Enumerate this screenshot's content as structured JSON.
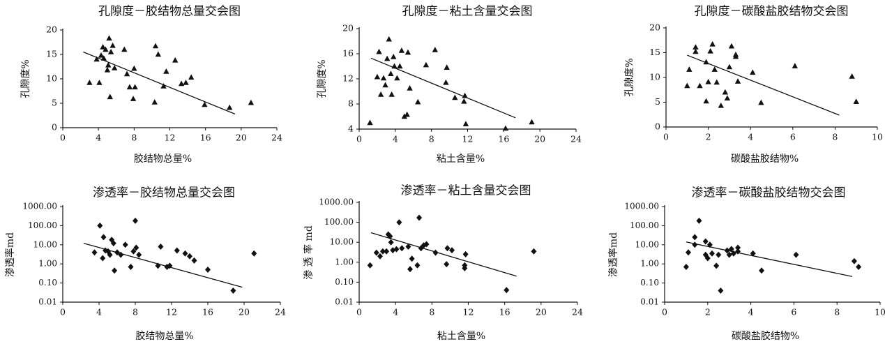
{
  "chart_data": [
    {
      "type": "scatter",
      "title": "孔隙度－胶结物总量交会图",
      "xlabel": "胶结物总量%",
      "ylabel": "孔隙度%",
      "xlim": [
        0,
        24
      ],
      "ylim": [
        0,
        20
      ],
      "x_ticks": [
        0,
        4,
        8,
        12,
        16,
        20,
        24
      ],
      "x_tick_labels": [
        "0",
        "4",
        "8",
        "12",
        "16",
        "20",
        "24"
      ],
      "y_ticks": [
        0,
        5,
        10,
        15,
        20
      ],
      "y_tick_labels": [
        "0",
        "5",
        "10",
        "15",
        "20"
      ],
      "y_scale": "linear",
      "marker": "triangle",
      "trendline": [
        [
          2.3,
          15.5
        ],
        [
          19.3,
          2.8
        ]
      ],
      "points": [
        [
          3.0,
          9.2
        ],
        [
          3.8,
          14.0
        ],
        [
          4.1,
          9.2
        ],
        [
          4.3,
          14.8
        ],
        [
          4.5,
          16.5
        ],
        [
          4.6,
          14.2
        ],
        [
          4.8,
          16.0
        ],
        [
          5.0,
          11.8
        ],
        [
          5.1,
          12.8
        ],
        [
          5.2,
          18.3
        ],
        [
          5.3,
          6.3
        ],
        [
          5.4,
          15.5
        ],
        [
          5.6,
          16.8
        ],
        [
          5.8,
          12.2
        ],
        [
          6.9,
          16.0
        ],
        [
          7.2,
          11.0
        ],
        [
          7.5,
          8.3
        ],
        [
          8.0,
          12.1
        ],
        [
          7.9,
          5.9
        ],
        [
          8.1,
          8.3
        ],
        [
          10.3,
          5.2
        ],
        [
          10.4,
          16.7
        ],
        [
          10.7,
          15.0
        ],
        [
          11.3,
          8.5
        ],
        [
          11.6,
          11.5
        ],
        [
          12.6,
          13.8
        ],
        [
          13.3,
          9.0
        ],
        [
          13.8,
          9.2
        ],
        [
          14.4,
          10.3
        ],
        [
          15.9,
          4.7
        ],
        [
          18.7,
          4.1
        ],
        [
          21.1,
          5.1
        ]
      ]
    },
    {
      "type": "scatter",
      "title": "孔隙度－粘土含量交会图",
      "xlabel": "粘土含量%",
      "ylabel": "孔隙度%",
      "xlim": [
        0,
        24
      ],
      "ylim": [
        4,
        20
      ],
      "x_ticks": [
        0,
        4,
        8,
        12,
        16,
        20,
        24
      ],
      "x_tick_labels": [
        "0",
        "4",
        "8",
        "12",
        "16",
        "20",
        "24"
      ],
      "y_ticks": [
        4,
        8,
        12,
        16,
        20
      ],
      "y_tick_labels": [
        "4",
        "8",
        "12",
        "16",
        "20"
      ],
      "y_scale": "linear",
      "marker": "triangle",
      "trendline": [
        [
          1.3,
          15.3
        ],
        [
          17.3,
          5.8
        ]
      ],
      "points": [
        [
          1.2,
          5.0
        ],
        [
          2.0,
          12.3
        ],
        [
          2.2,
          16.3
        ],
        [
          2.4,
          9.5
        ],
        [
          2.7,
          12.1
        ],
        [
          2.9,
          11.0
        ],
        [
          3.1,
          15.2
        ],
        [
          3.3,
          18.3
        ],
        [
          3.5,
          12.8
        ],
        [
          3.6,
          9.5
        ],
        [
          3.8,
          15.5
        ],
        [
          3.9,
          14.0
        ],
        [
          4.2,
          12.1
        ],
        [
          4.5,
          14.0
        ],
        [
          4.7,
          16.5
        ],
        [
          5.0,
          6.0
        ],
        [
          5.3,
          6.3
        ],
        [
          5.4,
          16.2
        ],
        [
          5.6,
          10.5
        ],
        [
          6.5,
          8.3
        ],
        [
          7.4,
          14.2
        ],
        [
          8.4,
          16.6
        ],
        [
          9.7,
          13.8
        ],
        [
          9.6,
          11.4
        ],
        [
          10.6,
          9.0
        ],
        [
          11.6,
          8.4
        ],
        [
          11.7,
          9.3
        ],
        [
          11.8,
          4.8
        ],
        [
          16.2,
          4.1
        ],
        [
          19.1,
          5.1
        ]
      ]
    },
    {
      "type": "scatter",
      "title": "孔隙度－碳酸盐胶结物交会图",
      "xlabel": "碳酸盐胶结物%",
      "ylabel": "孔隙度%",
      "xlim": [
        0,
        10
      ],
      "ylim": [
        0,
        20
      ],
      "x_ticks": [
        0,
        2,
        4,
        6,
        8,
        10
      ],
      "x_tick_labels": [
        "0",
        "2",
        "4",
        "6",
        "8",
        "10"
      ],
      "y_ticks": [
        0,
        5,
        10,
        15,
        20
      ],
      "y_tick_labels": [
        "0",
        "5",
        "10",
        "15",
        "20"
      ],
      "y_scale": "linear",
      "marker": "triangle",
      "trendline": [
        [
          1.0,
          14.5
        ],
        [
          8.2,
          2.4
        ]
      ],
      "points": [
        [
          1.0,
          8.3
        ],
        [
          1.1,
          11.6
        ],
        [
          1.4,
          16.1
        ],
        [
          1.4,
          15.2
        ],
        [
          1.6,
          8.3
        ],
        [
          1.9,
          13.1
        ],
        [
          1.9,
          5.2
        ],
        [
          2.0,
          9.1
        ],
        [
          2.1,
          15.3
        ],
        [
          2.2,
          16.7
        ],
        [
          2.3,
          11.6
        ],
        [
          2.4,
          9.0
        ],
        [
          2.6,
          4.3
        ],
        [
          2.8,
          7.0
        ],
        [
          2.9,
          5.8
        ],
        [
          3.0,
          12.1
        ],
        [
          3.1,
          16.3
        ],
        [
          3.3,
          14.2
        ],
        [
          3.3,
          14.6
        ],
        [
          3.4,
          9.2
        ],
        [
          4.1,
          11.0
        ],
        [
          4.5,
          4.9
        ],
        [
          6.1,
          12.3
        ],
        [
          8.8,
          10.2
        ],
        [
          9.0,
          5.1
        ]
      ]
    },
    {
      "type": "scatter",
      "title": "渗透率－胶结物总量交会图",
      "xlabel": "胶结物总量%",
      "ylabel": "渗透率md",
      "xlim": [
        0,
        24
      ],
      "ylim": [
        0.01,
        1000
      ],
      "x_ticks": [
        0,
        4,
        8,
        12,
        16,
        20,
        24
      ],
      "x_tick_labels": [
        "0",
        "4",
        "8",
        "12",
        "16",
        "20",
        "24"
      ],
      "y_ticks": [
        0.01,
        0.1,
        1,
        10,
        100,
        1000
      ],
      "y_tick_labels": [
        "0.01",
        "0.10",
        "1.00",
        "10.00",
        "100.00",
        "1000.00"
      ],
      "y_scale": "log",
      "marker": "diamond",
      "trendline": [
        [
          2.3,
          12.0
        ],
        [
          19.8,
          0.06
        ]
      ],
      "points": [
        [
          3.5,
          4.0
        ],
        [
          4.1,
          100.0
        ],
        [
          4.5,
          25.0
        ],
        [
          4.4,
          2.0
        ],
        [
          4.7,
          5.0
        ],
        [
          5.0,
          4.5
        ],
        [
          5.2,
          3.0
        ],
        [
          5.4,
          18.0
        ],
        [
          5.6,
          12.0
        ],
        [
          5.7,
          0.45
        ],
        [
          6.0,
          4.0
        ],
        [
          6.4,
          3.0
        ],
        [
          6.9,
          10.0
        ],
        [
          7.5,
          0.7
        ],
        [
          7.8,
          4.5
        ],
        [
          8.0,
          180.0
        ],
        [
          8.1,
          7.0
        ],
        [
          8.4,
          3.0
        ],
        [
          10.5,
          0.8
        ],
        [
          10.8,
          8.0
        ],
        [
          11.5,
          0.7
        ],
        [
          11.8,
          0.8
        ],
        [
          12.6,
          5.0
        ],
        [
          13.5,
          3.5
        ],
        [
          14.0,
          2.5
        ],
        [
          14.5,
          1.5
        ],
        [
          16.0,
          0.5
        ],
        [
          18.8,
          0.04
        ],
        [
          21.1,
          3.5
        ]
      ]
    },
    {
      "type": "scatter",
      "title": "渗透率－粘土含量交会图",
      "xlabel": "粘土含量%",
      "ylabel": "渗 透 率 md",
      "xlim": [
        0,
        24
      ],
      "ylim": [
        0.01,
        1000
      ],
      "x_ticks": [
        0,
        4,
        8,
        12,
        16,
        20,
        24
      ],
      "x_tick_labels": [
        "0",
        "4",
        "8",
        "12",
        "16",
        "20",
        "24"
      ],
      "y_ticks": [
        0.01,
        0.1,
        1,
        10,
        100,
        1000
      ],
      "y_tick_labels": [
        "0.01",
        "0.10",
        "1.00",
        "10.00",
        "100.00",
        "1000.00"
      ],
      "y_scale": "log",
      "marker": "diamond",
      "trendline": [
        [
          1.3,
          30.0
        ],
        [
          17.3,
          0.2
        ]
      ],
      "points": [
        [
          1.2,
          0.7
        ],
        [
          1.9,
          3.0
        ],
        [
          2.3,
          2.0
        ],
        [
          2.6,
          3.5
        ],
        [
          3.0,
          3.5
        ],
        [
          3.2,
          25.0
        ],
        [
          3.4,
          20.0
        ],
        [
          3.5,
          10.0
        ],
        [
          3.7,
          4.0
        ],
        [
          4.1,
          4.5
        ],
        [
          4.4,
          100.0
        ],
        [
          4.7,
          5.0
        ],
        [
          5.4,
          6.0
        ],
        [
          5.6,
          0.45
        ],
        [
          5.8,
          1.5
        ],
        [
          6.4,
          0.7
        ],
        [
          6.6,
          170.0
        ],
        [
          6.8,
          5.0
        ],
        [
          7.1,
          7.0
        ],
        [
          7.4,
          8.0
        ],
        [
          8.4,
          3.0
        ],
        [
          9.6,
          0.8
        ],
        [
          9.7,
          5.0
        ],
        [
          10.2,
          4.0
        ],
        [
          11.6,
          0.7
        ],
        [
          11.7,
          2.5
        ],
        [
          11.6,
          0.5
        ],
        [
          16.2,
          0.04
        ],
        [
          19.2,
          3.5
        ]
      ]
    },
    {
      "type": "scatter",
      "title": "渗透率－碳酸盐胶结物交会图",
      "xlabel": "碳酸盐胶结物%",
      "ylabel": "渗透率md",
      "xlim": [
        0,
        10
      ],
      "ylim": [
        0.01,
        1000
      ],
      "x_ticks": [
        0,
        2,
        4,
        6,
        8,
        10
      ],
      "x_tick_labels": [
        "0",
        "2",
        "4",
        "6",
        "8",
        "10"
      ],
      "y_ticks": [
        0.01,
        0.1,
        1,
        10,
        100,
        1000
      ],
      "y_tick_labels": [
        "0.01",
        "0.10",
        "1.00",
        "10.00",
        "100.00",
        "1000.00"
      ],
      "y_scale": "log",
      "marker": "diamond",
      "trendline": [
        [
          1.0,
          14.0
        ],
        [
          8.7,
          0.22
        ]
      ],
      "points": [
        [
          1.0,
          0.7
        ],
        [
          1.1,
          4.0
        ],
        [
          1.4,
          25.0
        ],
        [
          1.4,
          10.0
        ],
        [
          1.6,
          180.0
        ],
        [
          1.9,
          3.0
        ],
        [
          1.9,
          15.0
        ],
        [
          2.0,
          2.0
        ],
        [
          2.1,
          10.0
        ],
        [
          2.2,
          3.5
        ],
        [
          2.4,
          0.8
        ],
        [
          2.5,
          3.0
        ],
        [
          2.6,
          0.04
        ],
        [
          2.9,
          5.0
        ],
        [
          3.0,
          3.0
        ],
        [
          3.1,
          6.0
        ],
        [
          3.2,
          3.5
        ],
        [
          3.4,
          7.0
        ],
        [
          3.4,
          4.5
        ],
        [
          4.1,
          3.5
        ],
        [
          4.5,
          0.45
        ],
        [
          6.1,
          3.0
        ],
        [
          8.8,
          1.4
        ],
        [
          9.0,
          0.7
        ]
      ]
    }
  ]
}
